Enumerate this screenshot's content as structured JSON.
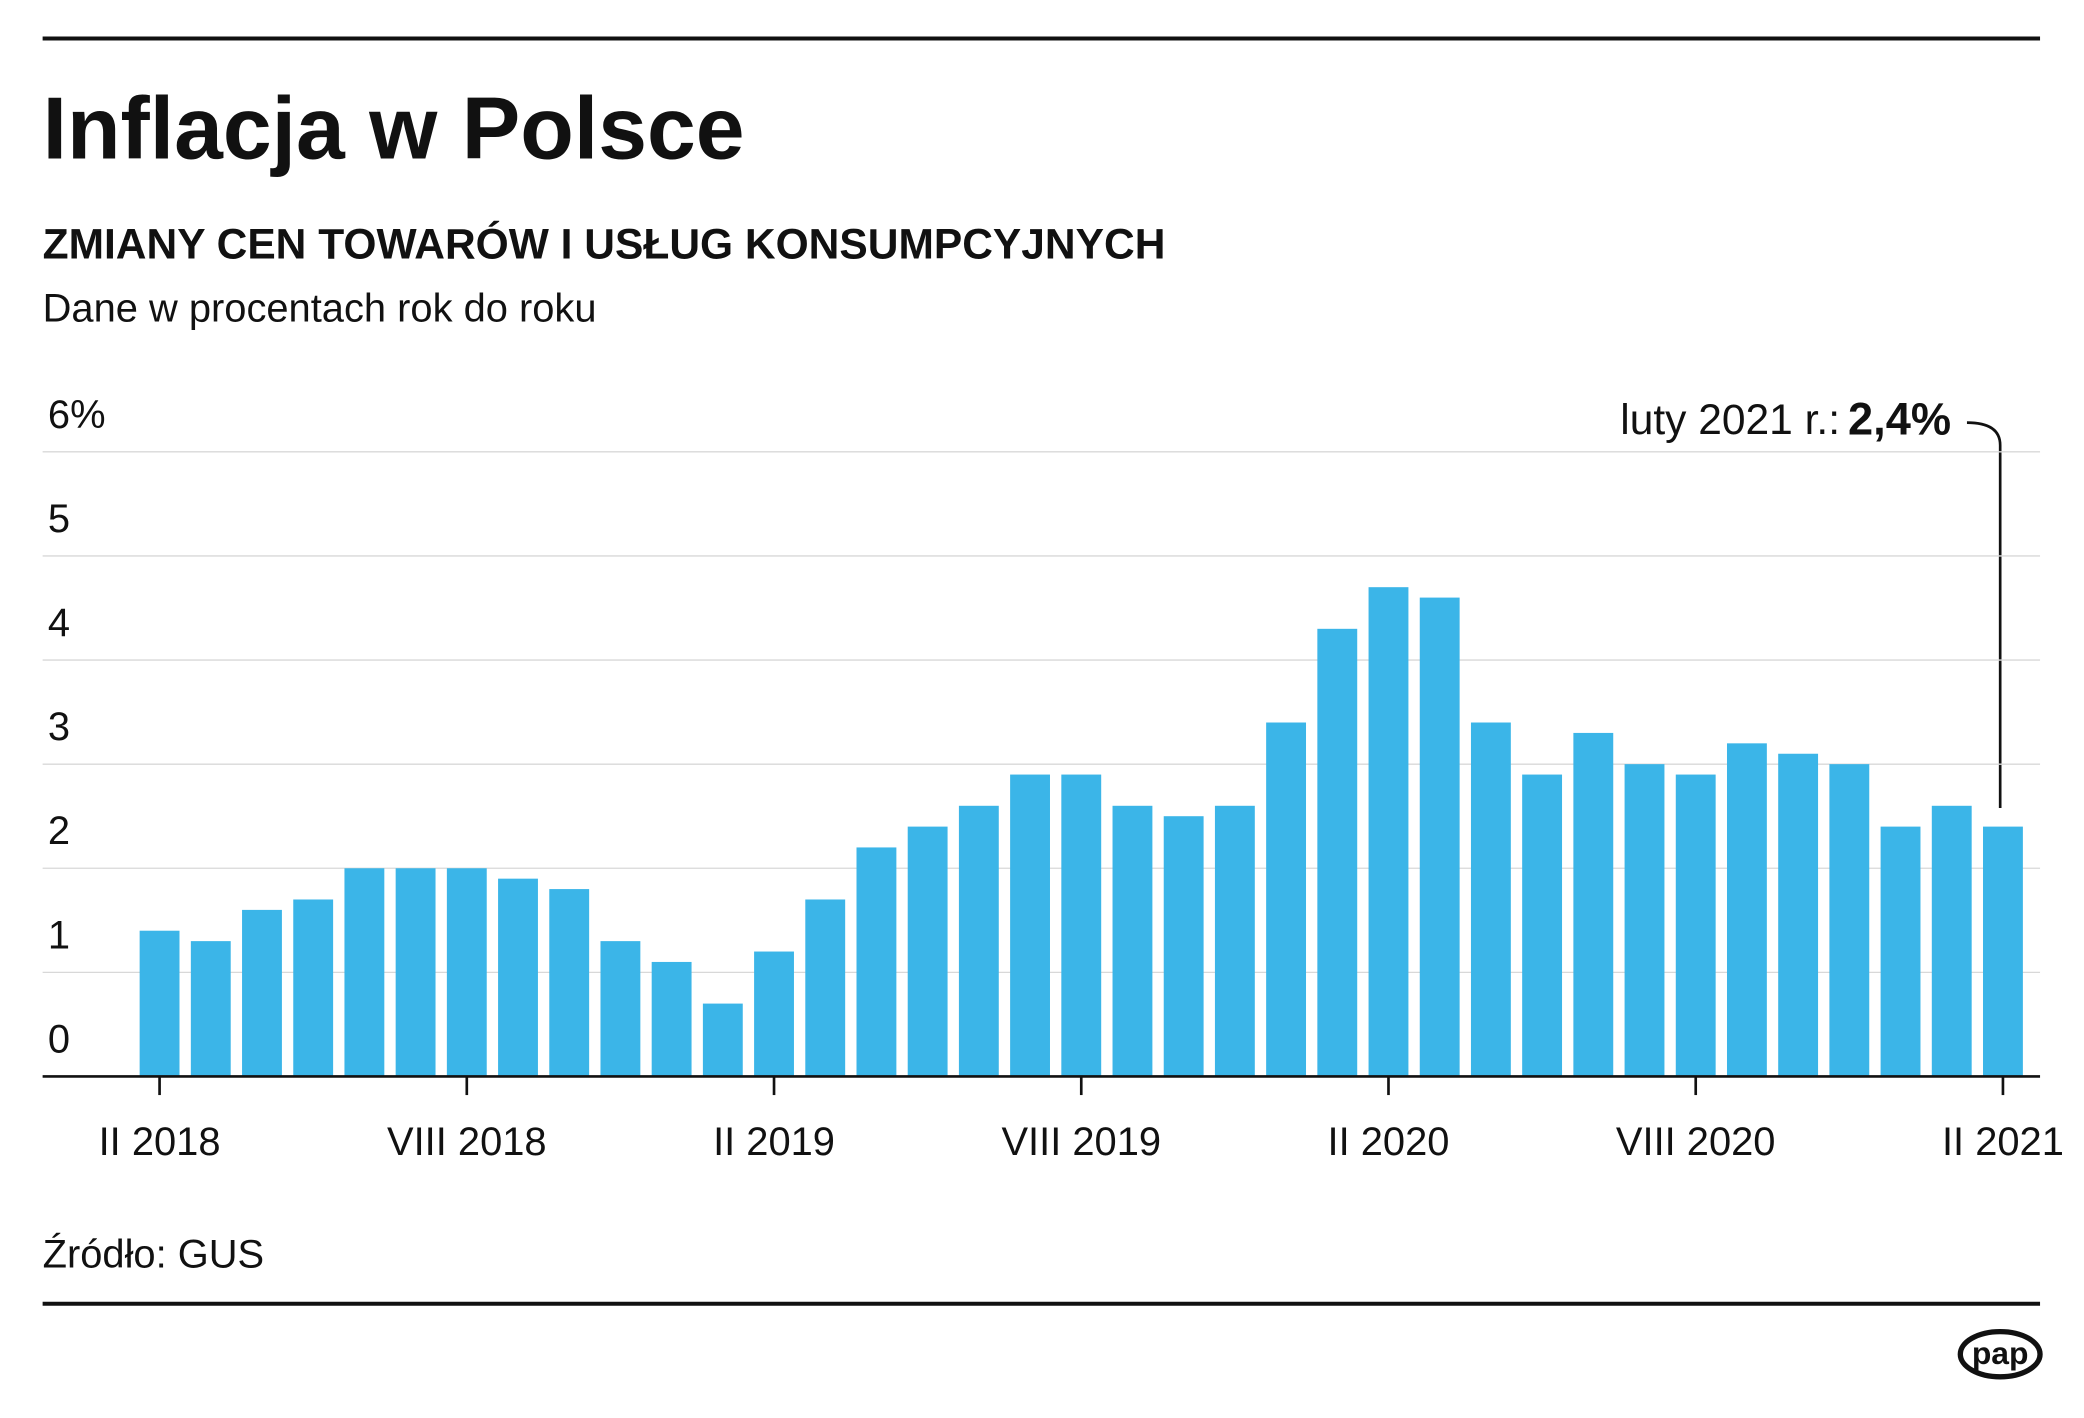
{
  "chart_data": {
    "type": "bar",
    "title": "Inflacja w Polsce",
    "subtitle": "ZMIANY CEN TOWARÓW I USŁUG KONSUMPCYJNYCH",
    "description": "Dane w procentach rok do roku",
    "categories": [
      "II 2018",
      null,
      null,
      null,
      null,
      null,
      "VIII 2018",
      null,
      null,
      null,
      null,
      null,
      "II 2019",
      null,
      null,
      null,
      null,
      null,
      "VIII 2019",
      null,
      null,
      null,
      null,
      null,
      "II 2020",
      null,
      null,
      null,
      null,
      null,
      "VIII 2020",
      null,
      null,
      null,
      null,
      null,
      "II 2021"
    ],
    "values": [
      1.4,
      1.3,
      1.6,
      1.7,
      2.0,
      2.0,
      2.0,
      1.9,
      1.8,
      1.3,
      1.1,
      0.7,
      1.2,
      1.7,
      2.2,
      2.4,
      2.6,
      2.9,
      2.9,
      2.6,
      2.5,
      2.6,
      3.4,
      4.3,
      4.7,
      4.6,
      3.4,
      2.9,
      3.3,
      3.0,
      2.9,
      3.2,
      3.1,
      3.0,
      2.4,
      2.6,
      2.4
    ],
    "value_labels": [
      null,
      null,
      null,
      null,
      null,
      null,
      null,
      null,
      null,
      null,
      null,
      null,
      null,
      null,
      null,
      null,
      null,
      null,
      null,
      null,
      null,
      null,
      null,
      null,
      null,
      null,
      null,
      null,
      null,
      null,
      null,
      null,
      null,
      null,
      null,
      null,
      "2,4%"
    ],
    "annotation": "luty 2021 r.:",
    "color": "#3bb5e8",
    "ylim": [
      0,
      6
    ],
    "yticks": [
      0,
      1,
      2,
      3,
      4,
      5,
      {
        "value": 6,
        "label": "6%"
      }
    ],
    "grid": true,
    "source": "Źródło: GUS",
    "logo": "pap"
  }
}
